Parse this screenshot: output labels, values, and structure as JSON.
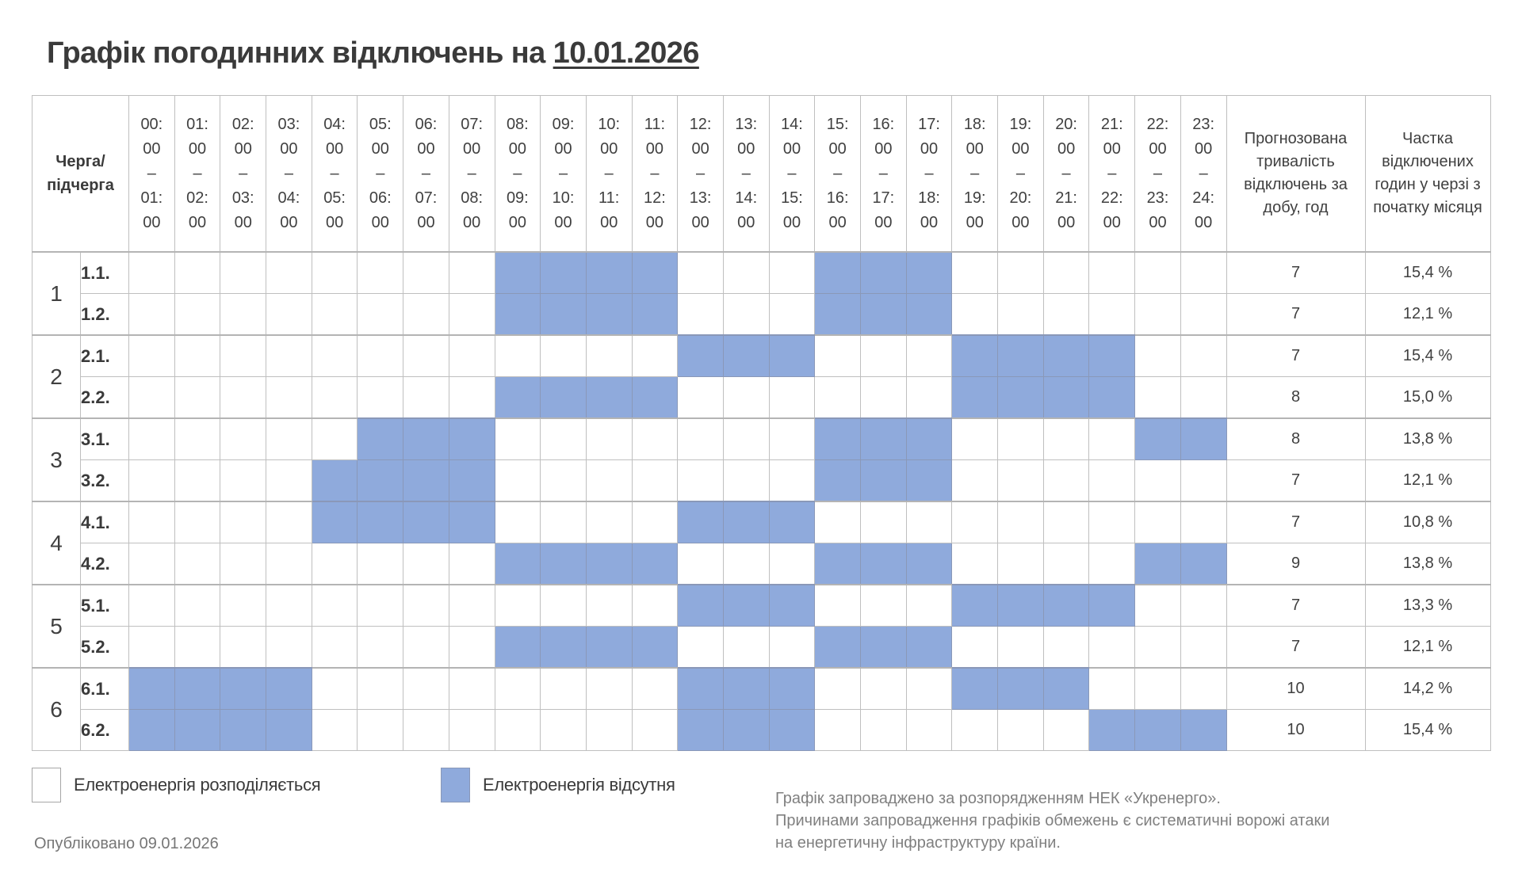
{
  "title": {
    "prefix": "Графік погодинних відключень на",
    "date": "10.01.2026"
  },
  "colors": {
    "power_off": "#8faadc",
    "power_on": "#ffffff",
    "grid": "#bfbfbf"
  },
  "table": {
    "queue_header_line1": "Черга/",
    "queue_header_line2": "підчерга",
    "duration_header": "Прогнозована тривалість відключень за добу, год",
    "share_header": "Частка відключених годин у черзі з початку місяця",
    "hours": [
      {
        "from_h": "00:",
        "from_m": "00",
        "dash": "–",
        "to_h": "01:",
        "to_m": "00"
      },
      {
        "from_h": "01:",
        "from_m": "00",
        "dash": "–",
        "to_h": "02:",
        "to_m": "00"
      },
      {
        "from_h": "02:",
        "from_m": "00",
        "dash": "–",
        "to_h": "03:",
        "to_m": "00"
      },
      {
        "from_h": "03:",
        "from_m": "00",
        "dash": "–",
        "to_h": "04:",
        "to_m": "00"
      },
      {
        "from_h": "04:",
        "from_m": "00",
        "dash": "–",
        "to_h": "05:",
        "to_m": "00"
      },
      {
        "from_h": "05:",
        "from_m": "00",
        "dash": "–",
        "to_h": "06:",
        "to_m": "00"
      },
      {
        "from_h": "06:",
        "from_m": "00",
        "dash": "–",
        "to_h": "07:",
        "to_m": "00"
      },
      {
        "from_h": "07:",
        "from_m": "00",
        "dash": "–",
        "to_h": "08:",
        "to_m": "00"
      },
      {
        "from_h": "08:",
        "from_m": "00",
        "dash": "–",
        "to_h": "09:",
        "to_m": "00"
      },
      {
        "from_h": "09:",
        "from_m": "00",
        "dash": "–",
        "to_h": "10:",
        "to_m": "00"
      },
      {
        "from_h": "10:",
        "from_m": "00",
        "dash": "–",
        "to_h": "11:",
        "to_m": "00"
      },
      {
        "from_h": "11:",
        "from_m": "00",
        "dash": "–",
        "to_h": "12:",
        "to_m": "00"
      },
      {
        "from_h": "12:",
        "from_m": "00",
        "dash": "–",
        "to_h": "13:",
        "to_m": "00"
      },
      {
        "from_h": "13:",
        "from_m": "00",
        "dash": "–",
        "to_h": "14:",
        "to_m": "00"
      },
      {
        "from_h": "14:",
        "from_m": "00",
        "dash": "–",
        "to_h": "15:",
        "to_m": "00"
      },
      {
        "from_h": "15:",
        "from_m": "00",
        "dash": "–",
        "to_h": "16:",
        "to_m": "00"
      },
      {
        "from_h": "16:",
        "from_m": "00",
        "dash": "–",
        "to_h": "17:",
        "to_m": "00"
      },
      {
        "from_h": "17:",
        "from_m": "00",
        "dash": "–",
        "to_h": "18:",
        "to_m": "00"
      },
      {
        "from_h": "18:",
        "from_m": "00",
        "dash": "–",
        "to_h": "19:",
        "to_m": "00"
      },
      {
        "from_h": "19:",
        "from_m": "00",
        "dash": "–",
        "to_h": "20:",
        "to_m": "00"
      },
      {
        "from_h": "20:",
        "from_m": "00",
        "dash": "–",
        "to_h": "21:",
        "to_m": "00"
      },
      {
        "from_h": "21:",
        "from_m": "00",
        "dash": "–",
        "to_h": "22:",
        "to_m": "00"
      },
      {
        "from_h": "22:",
        "from_m": "00",
        "dash": "–",
        "to_h": "23:",
        "to_m": "00"
      },
      {
        "from_h": "23:",
        "from_m": "00",
        "dash": "–",
        "to_h": "24:",
        "to_m": "00"
      }
    ],
    "groups": [
      {
        "group": "1",
        "subgroups": [
          {
            "label": "1.1.",
            "off": [
              0,
              0,
              0,
              0,
              0,
              0,
              0,
              0,
              1,
              1,
              1,
              1,
              0,
              0,
              0,
              1,
              1,
              1,
              0,
              0,
              0,
              0,
              0,
              0
            ],
            "duration": "7",
            "share": "15,4 %"
          },
          {
            "label": "1.2.",
            "off": [
              0,
              0,
              0,
              0,
              0,
              0,
              0,
              0,
              1,
              1,
              1,
              1,
              0,
              0,
              0,
              1,
              1,
              1,
              0,
              0,
              0,
              0,
              0,
              0
            ],
            "duration": "7",
            "share": "12,1 %"
          }
        ]
      },
      {
        "group": "2",
        "subgroups": [
          {
            "label": "2.1.",
            "off": [
              0,
              0,
              0,
              0,
              0,
              0,
              0,
              0,
              0,
              0,
              0,
              0,
              1,
              1,
              1,
              0,
              0,
              0,
              1,
              1,
              1,
              1,
              0,
              0
            ],
            "duration": "7",
            "share": "15,4 %"
          },
          {
            "label": "2.2.",
            "off": [
              0,
              0,
              0,
              0,
              0,
              0,
              0,
              0,
              1,
              1,
              1,
              1,
              0,
              0,
              0,
              0,
              0,
              0,
              1,
              1,
              1,
              1,
              0,
              0
            ],
            "duration": "8",
            "share": "15,0 %"
          }
        ]
      },
      {
        "group": "3",
        "subgroups": [
          {
            "label": "3.1.",
            "off": [
              0,
              0,
              0,
              0,
              0,
              1,
              1,
              1,
              0,
              0,
              0,
              0,
              0,
              0,
              0,
              1,
              1,
              1,
              0,
              0,
              0,
              0,
              1,
              1
            ],
            "duration": "8",
            "share": "13,8 %"
          },
          {
            "label": "3.2.",
            "off": [
              0,
              0,
              0,
              0,
              1,
              1,
              1,
              1,
              0,
              0,
              0,
              0,
              0,
              0,
              0,
              1,
              1,
              1,
              0,
              0,
              0,
              0,
              0,
              0
            ],
            "duration": "7",
            "share": "12,1 %"
          }
        ]
      },
      {
        "group": "4",
        "subgroups": [
          {
            "label": "4.1.",
            "off": [
              0,
              0,
              0,
              0,
              1,
              1,
              1,
              1,
              0,
              0,
              0,
              0,
              1,
              1,
              1,
              0,
              0,
              0,
              0,
              0,
              0,
              0,
              0,
              0
            ],
            "duration": "7",
            "share": "10,8 %"
          },
          {
            "label": "4.2.",
            "off": [
              0,
              0,
              0,
              0,
              0,
              0,
              0,
              0,
              1,
              1,
              1,
              1,
              0,
              0,
              0,
              1,
              1,
              1,
              0,
              0,
              0,
              0,
              1,
              1
            ],
            "duration": "9",
            "share": "13,8 %"
          }
        ]
      },
      {
        "group": "5",
        "subgroups": [
          {
            "label": "5.1.",
            "off": [
              0,
              0,
              0,
              0,
              0,
              0,
              0,
              0,
              0,
              0,
              0,
              0,
              1,
              1,
              1,
              0,
              0,
              0,
              1,
              1,
              1,
              1,
              0,
              0
            ],
            "duration": "7",
            "share": "13,3 %"
          },
          {
            "label": "5.2.",
            "off": [
              0,
              0,
              0,
              0,
              0,
              0,
              0,
              0,
              1,
              1,
              1,
              1,
              0,
              0,
              0,
              1,
              1,
              1,
              0,
              0,
              0,
              0,
              0,
              0
            ],
            "duration": "7",
            "share": "12,1 %"
          }
        ]
      },
      {
        "group": "6",
        "subgroups": [
          {
            "label": "6.1.",
            "off": [
              1,
              1,
              1,
              1,
              0,
              0,
              0,
              0,
              0,
              0,
              0,
              0,
              1,
              1,
              1,
              0,
              0,
              0,
              1,
              1,
              1,
              0,
              0,
              0
            ],
            "duration": "10",
            "share": "14,2 %"
          },
          {
            "label": "6.2.",
            "off": [
              1,
              1,
              1,
              1,
              0,
              0,
              0,
              0,
              0,
              0,
              0,
              0,
              1,
              1,
              1,
              0,
              0,
              0,
              0,
              0,
              0,
              1,
              1,
              1
            ],
            "duration": "10",
            "share": "15,4 %"
          }
        ]
      }
    ]
  },
  "legend": {
    "on_label": "Електроенергія розподіляється",
    "off_label": "Електроенергія відсутня"
  },
  "footer": {
    "published": "Опубліковано 09.01.2026",
    "notes": [
      "Графік запроваджено за розпорядженням НЕК «Укренерго».",
      "Причинами запровадження графіків обмежень є систематичні ворожі атаки",
      "на енергетичну інфраструктуру країни."
    ]
  }
}
